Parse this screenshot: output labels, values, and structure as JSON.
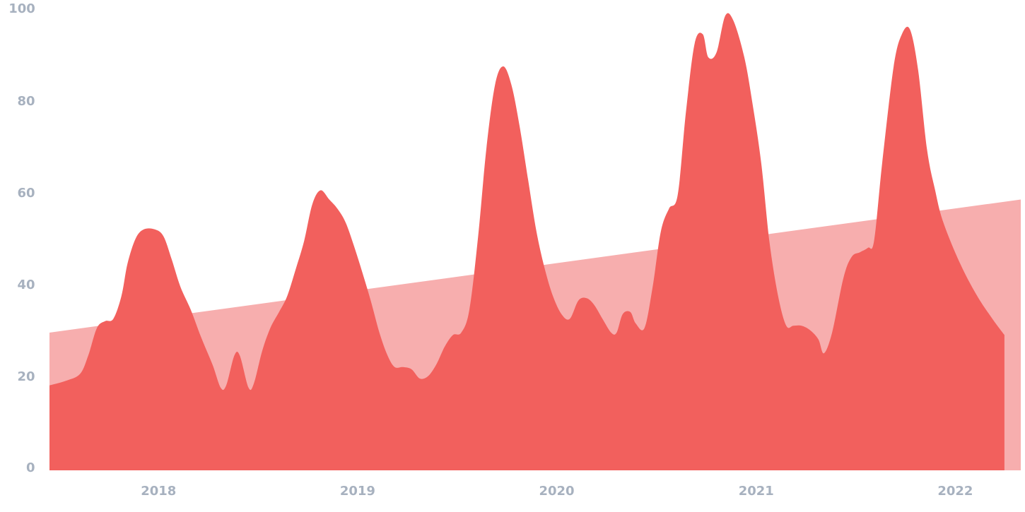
{
  "colors": {
    "trend": "#f7aeae",
    "series": "#f2605d",
    "tick": "#a7b1bf",
    "background": "#ffffff"
  },
  "chart_data": {
    "type": "area",
    "title": "",
    "xlabel": "",
    "ylabel": "",
    "ylim": [
      0,
      100
    ],
    "xlim": [
      "2017-06-15",
      "2022-05-01"
    ],
    "grid": false,
    "legend": "none",
    "y_ticks": [
      "0",
      "20",
      "40",
      "60",
      "80",
      "100"
    ],
    "x_ticks": [
      {
        "date": "2018-01-01",
        "label": "2018"
      },
      {
        "date": "2019-01-01",
        "label": "2019"
      },
      {
        "date": "2020-01-01",
        "label": "2020"
      },
      {
        "date": "2021-01-01",
        "label": "2021"
      },
      {
        "date": "2022-01-01",
        "label": "2022"
      }
    ],
    "series": [
      {
        "role": "trend",
        "points": [
          [
            "2017-06-15",
            30
          ],
          [
            "2022-05-01",
            59
          ]
        ]
      },
      {
        "role": "main",
        "points": [
          [
            "2017-06-15",
            18.5
          ],
          [
            "2017-07-15",
            19.5
          ],
          [
            "2017-08-10",
            21
          ],
          [
            "2017-08-25",
            25
          ],
          [
            "2017-09-10",
            31
          ],
          [
            "2017-09-25",
            32.5
          ],
          [
            "2017-10-10",
            33
          ],
          [
            "2017-10-25",
            38
          ],
          [
            "2017-11-05",
            45
          ],
          [
            "2017-11-20",
            50.5
          ],
          [
            "2017-12-05",
            52.5
          ],
          [
            "2017-12-25",
            52.5
          ],
          [
            "2018-01-10",
            51
          ],
          [
            "2018-01-25",
            46
          ],
          [
            "2018-02-10",
            40
          ],
          [
            "2018-03-01",
            35
          ],
          [
            "2018-03-20",
            29
          ],
          [
            "2018-04-10",
            23
          ],
          [
            "2018-04-25",
            18
          ],
          [
            "2018-05-05",
            18.5
          ],
          [
            "2018-05-20",
            25
          ],
          [
            "2018-05-30",
            25
          ],
          [
            "2018-06-15",
            18
          ],
          [
            "2018-06-25",
            19
          ],
          [
            "2018-07-10",
            26
          ],
          [
            "2018-07-25",
            31
          ],
          [
            "2018-08-10",
            34.5
          ],
          [
            "2018-08-25",
            38
          ],
          [
            "2018-09-10",
            44
          ],
          [
            "2018-09-25",
            50
          ],
          [
            "2018-10-10",
            58
          ],
          [
            "2018-10-25",
            61
          ],
          [
            "2018-11-10",
            59
          ],
          [
            "2018-11-25",
            57
          ],
          [
            "2018-12-10",
            54
          ],
          [
            "2018-12-25",
            49
          ],
          [
            "2019-01-10",
            43
          ],
          [
            "2019-01-25",
            37
          ],
          [
            "2019-02-10",
            30
          ],
          [
            "2019-02-25",
            25
          ],
          [
            "2019-03-10",
            22.5
          ],
          [
            "2019-03-25",
            22.5
          ],
          [
            "2019-04-10",
            22
          ],
          [
            "2019-04-25",
            20
          ],
          [
            "2019-05-10",
            20.5
          ],
          [
            "2019-05-25",
            23
          ],
          [
            "2019-06-10",
            27
          ],
          [
            "2019-06-25",
            29.5
          ],
          [
            "2019-07-10",
            30
          ],
          [
            "2019-07-25",
            35
          ],
          [
            "2019-08-10",
            51
          ],
          [
            "2019-08-25",
            70
          ],
          [
            "2019-09-10",
            84
          ],
          [
            "2019-09-25",
            88
          ],
          [
            "2019-10-10",
            84
          ],
          [
            "2019-10-25",
            75
          ],
          [
            "2019-11-10",
            63
          ],
          [
            "2019-11-25",
            52
          ],
          [
            "2019-12-10",
            44
          ],
          [
            "2019-12-25",
            38
          ],
          [
            "2020-01-10",
            34
          ],
          [
            "2020-01-25",
            33
          ],
          [
            "2020-02-10",
            37
          ],
          [
            "2020-02-25",
            37.5
          ],
          [
            "2020-03-10",
            36
          ],
          [
            "2020-03-25",
            33
          ],
          [
            "2020-04-10",
            30
          ],
          [
            "2020-04-20",
            30
          ],
          [
            "2020-05-01",
            34
          ],
          [
            "2020-05-15",
            34.5
          ],
          [
            "2020-05-25",
            32
          ],
          [
            "2020-06-10",
            31
          ],
          [
            "2020-06-25",
            40
          ],
          [
            "2020-07-10",
            52
          ],
          [
            "2020-07-25",
            57
          ],
          [
            "2020-08-10",
            60
          ],
          [
            "2020-08-25",
            78
          ],
          [
            "2020-09-10",
            93
          ],
          [
            "2020-09-25",
            95
          ],
          [
            "2020-10-05",
            90
          ],
          [
            "2020-10-20",
            91
          ],
          [
            "2020-11-05",
            99
          ],
          [
            "2020-11-20",
            98
          ],
          [
            "2020-12-10",
            90
          ],
          [
            "2020-12-25",
            80
          ],
          [
            "2021-01-10",
            67
          ],
          [
            "2021-01-25",
            50
          ],
          [
            "2021-02-10",
            38
          ],
          [
            "2021-02-25",
            31.5
          ],
          [
            "2021-03-10",
            31.5
          ],
          [
            "2021-03-25",
            31.5
          ],
          [
            "2021-04-10",
            30.5
          ],
          [
            "2021-04-25",
            28.5
          ],
          [
            "2021-05-05",
            25.5
          ],
          [
            "2021-05-20",
            30
          ],
          [
            "2021-06-10",
            42
          ],
          [
            "2021-06-25",
            46.5
          ],
          [
            "2021-07-10",
            47.5
          ],
          [
            "2021-07-25",
            48.5
          ],
          [
            "2021-08-05",
            50
          ],
          [
            "2021-08-20",
            67
          ],
          [
            "2021-09-10",
            88
          ],
          [
            "2021-09-25",
            95
          ],
          [
            "2021-10-10",
            96
          ],
          [
            "2021-10-25",
            87
          ],
          [
            "2021-11-10",
            70
          ],
          [
            "2021-11-25",
            61
          ],
          [
            "2021-12-10",
            54
          ],
          [
            "2022-01-10",
            45
          ],
          [
            "2022-02-10",
            38
          ],
          [
            "2022-03-10",
            33
          ],
          [
            "2022-04-01",
            29.5
          ]
        ]
      }
    ]
  }
}
